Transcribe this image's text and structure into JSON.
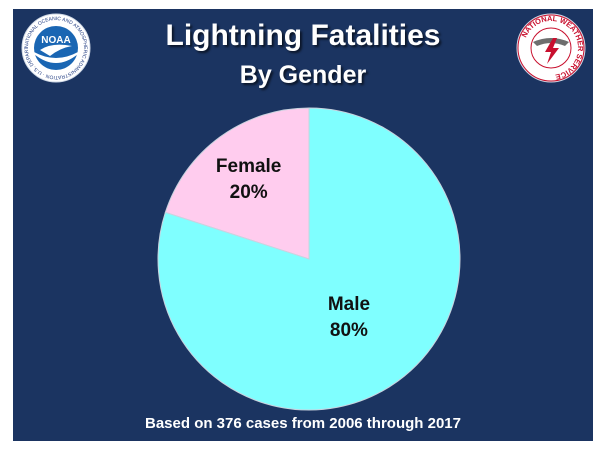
{
  "slide": {
    "title_line1": "Lightning Fatalities",
    "title_line2": "By Gender",
    "footnote": "Based on 376 cases from 2006 through 2017",
    "background_color": "#1b3461"
  },
  "logos": {
    "noaa": {
      "icon": "noaa-logo",
      "text": "NOAA",
      "ring_text": "NATIONAL OCEANIC AND ATMOSPHERIC ADMINISTRATION · U.S. DEPARTMENT OF COMMERCE"
    },
    "nws": {
      "icon": "nws-logo",
      "ring_text": "NATIONAL WEATHER SERVICE"
    }
  },
  "chart_data": {
    "type": "pie",
    "title": "Lightning Fatalities By Gender",
    "slices": [
      {
        "label": "Female",
        "value": 20,
        "display": "20%",
        "color": "#ffccee"
      },
      {
        "label": "Male",
        "value": 80,
        "display": "80%",
        "color": "#7fffff"
      }
    ]
  }
}
